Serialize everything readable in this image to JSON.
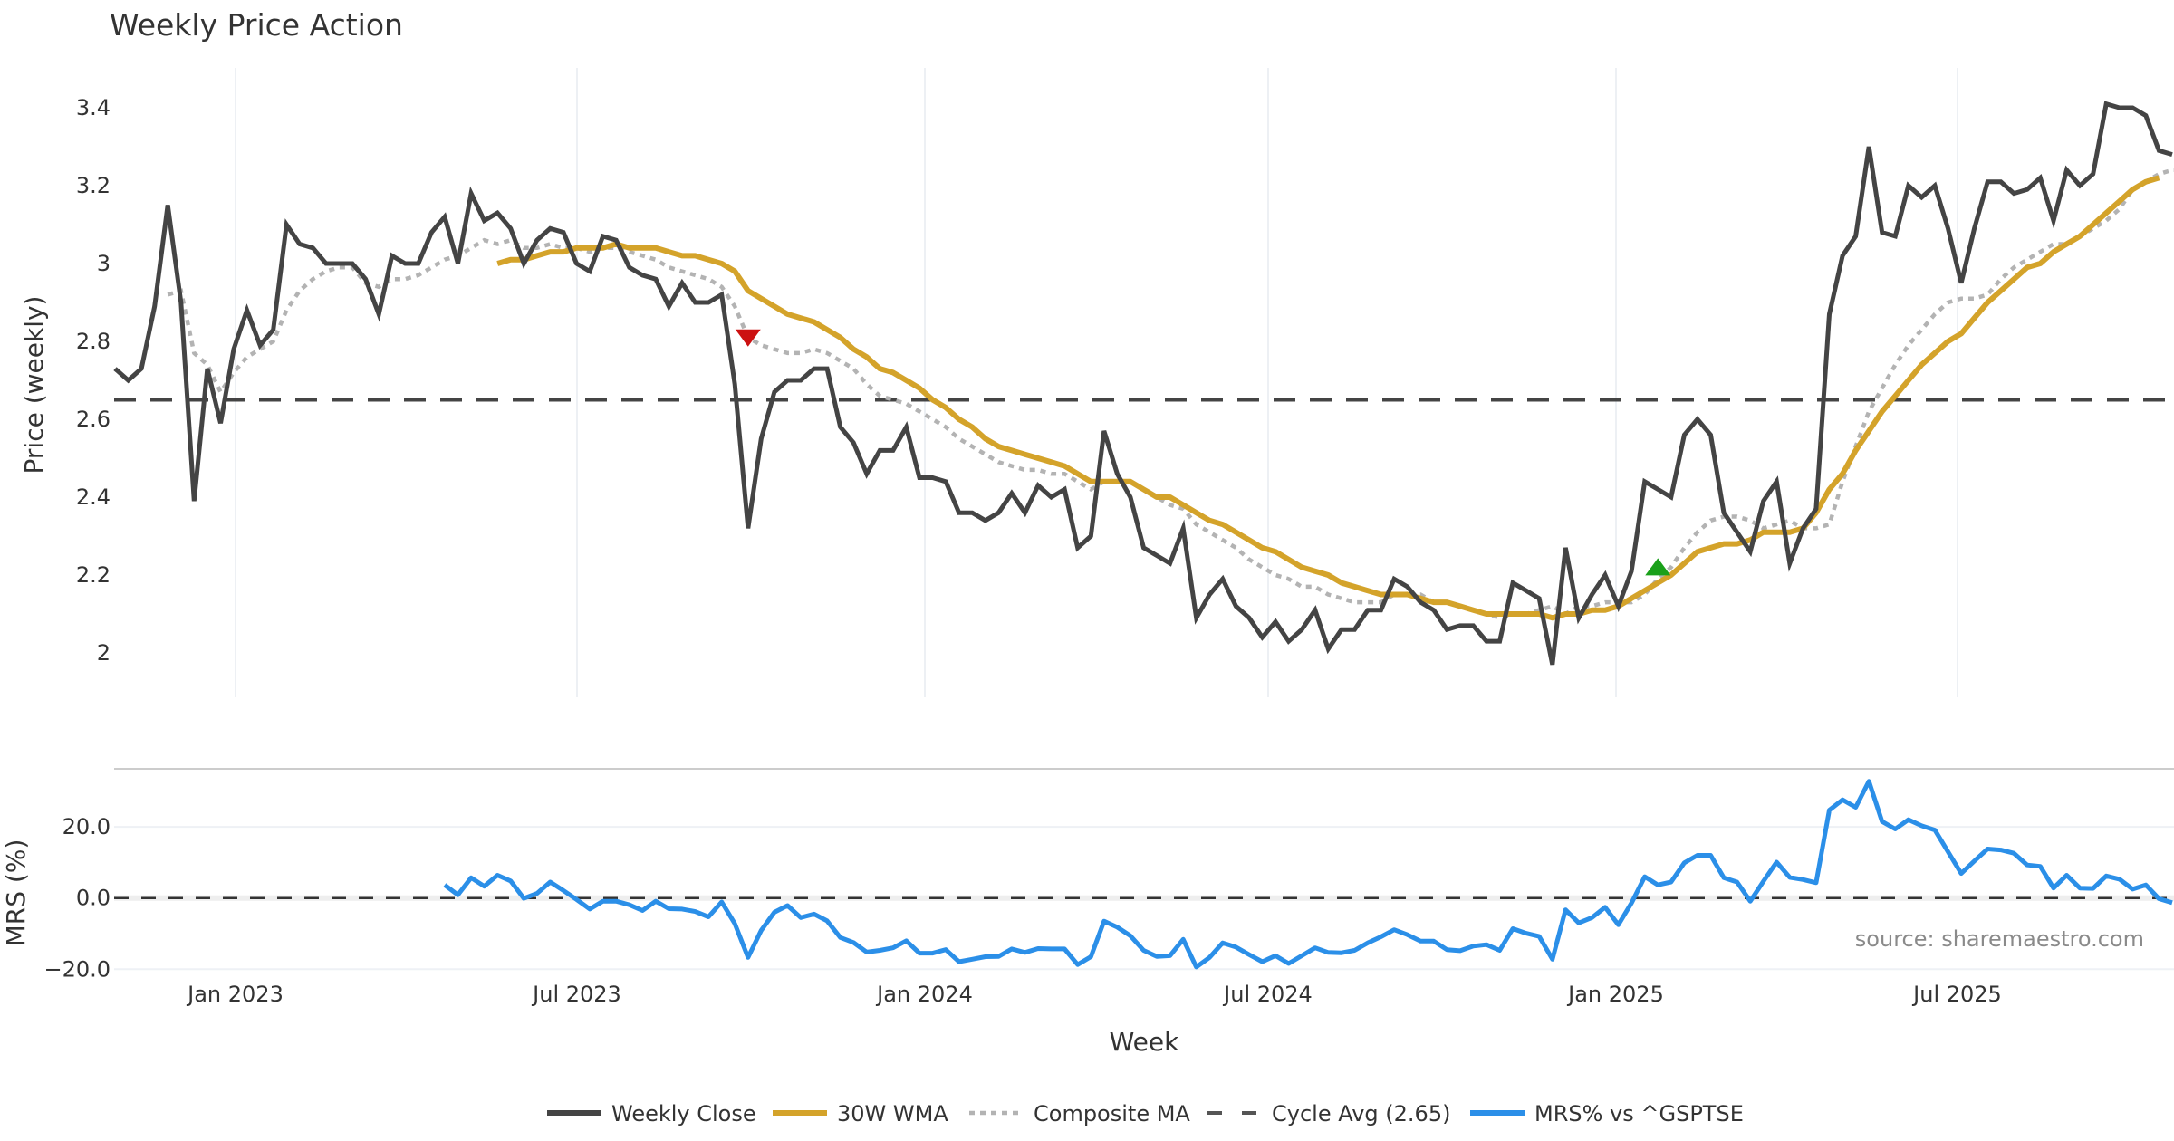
{
  "chart_data": {
    "type": "line",
    "title": "Weekly Price Action",
    "xlabel": "Week",
    "x_start": "2022-10",
    "x_ticks": [
      "Jan 2023",
      "Jul 2023",
      "Jan 2024",
      "Jul 2024",
      "Jan 2025",
      "Jul 2025"
    ],
    "top_panel": {
      "ylabel": "Price (weekly)",
      "ylim": [
        1.88,
        3.48
      ],
      "y_ticks": [
        "3.4",
        "3.2",
        "3",
        "2.8",
        "2.6",
        "2.4",
        "2.2",
        "2"
      ],
      "y_tick_values": [
        3.4,
        3.2,
        3.0,
        2.8,
        2.6,
        2.4,
        2.2,
        2.0
      ],
      "series": [
        {
          "name": "Weekly Close",
          "color": "#444444",
          "start_index": 0,
          "values": [
            2.73,
            2.7,
            2.73,
            2.89,
            3.15,
            2.9,
            2.39,
            2.73,
            2.59,
            2.78,
            2.88,
            2.79,
            2.83,
            3.1,
            3.05,
            3.04,
            3.0,
            3.0,
            3.0,
            2.96,
            2.87,
            3.02,
            3.0,
            3.0,
            3.08,
            3.12,
            3.0,
            3.18,
            3.11,
            3.13,
            3.09,
            3.0,
            3.06,
            3.09,
            3.08,
            3.0,
            2.98,
            3.07,
            3.06,
            2.99,
            2.97,
            2.96,
            2.89,
            2.95,
            2.9,
            2.9,
            2.92,
            2.69,
            2.32,
            2.55,
            2.67,
            2.7,
            2.7,
            2.73,
            2.73,
            2.58,
            2.54,
            2.46,
            2.52,
            2.52,
            2.58,
            2.45,
            2.45,
            2.44,
            2.36,
            2.36,
            2.34,
            2.36,
            2.41,
            2.36,
            2.43,
            2.4,
            2.42,
            2.27,
            2.3,
            2.57,
            2.46,
            2.4,
            2.27,
            2.25,
            2.23,
            2.32,
            2.09,
            2.15,
            2.19,
            2.12,
            2.09,
            2.04,
            2.08,
            2.03,
            2.06,
            2.11,
            2.01,
            2.06,
            2.06,
            2.11,
            2.11,
            2.19,
            2.17,
            2.13,
            2.11,
            2.06,
            2.07,
            2.07,
            2.03,
            2.03,
            2.18,
            2.16,
            2.14,
            1.97,
            2.27,
            2.09,
            2.15,
            2.2,
            2.12,
            2.21,
            2.44,
            2.42,
            2.4,
            2.56,
            2.6,
            2.56,
            2.36,
            2.31,
            2.26,
            2.39,
            2.44,
            2.23,
            2.32,
            2.37,
            2.87,
            3.02,
            3.07,
            3.3,
            3.08,
            3.07,
            3.2,
            3.17,
            3.2,
            3.09,
            2.95,
            3.09,
            3.21,
            3.21,
            3.18,
            3.19,
            3.22,
            3.11,
            3.24,
            3.2,
            3.23,
            3.41,
            3.4,
            3.4,
            3.38,
            3.29,
            3.28
          ]
        },
        {
          "name": "30W WMA",
          "color": "#D4A32A",
          "start_index": 29,
          "values": [
            3.0,
            3.01,
            3.01,
            3.02,
            3.03,
            3.03,
            3.04,
            3.04,
            3.04,
            3.05,
            3.04,
            3.04,
            3.04,
            3.03,
            3.02,
            3.02,
            3.01,
            3.0,
            2.98,
            2.93,
            2.91,
            2.89,
            2.87,
            2.86,
            2.85,
            2.83,
            2.81,
            2.78,
            2.76,
            2.73,
            2.72,
            2.7,
            2.68,
            2.65,
            2.63,
            2.6,
            2.58,
            2.55,
            2.53,
            2.52,
            2.51,
            2.5,
            2.49,
            2.48,
            2.46,
            2.44,
            2.44,
            2.44,
            2.44,
            2.42,
            2.4,
            2.4,
            2.38,
            2.36,
            2.34,
            2.33,
            2.31,
            2.29,
            2.27,
            2.26,
            2.24,
            2.22,
            2.21,
            2.2,
            2.18,
            2.17,
            2.16,
            2.15,
            2.15,
            2.15,
            2.14,
            2.13,
            2.13,
            2.12,
            2.11,
            2.1,
            2.1,
            2.1,
            2.1,
            2.1,
            2.09,
            2.1,
            2.1,
            2.11,
            2.11,
            2.12,
            2.14,
            2.16,
            2.18,
            2.2,
            2.23,
            2.26,
            2.27,
            2.28,
            2.28,
            2.29,
            2.31,
            2.31,
            2.31,
            2.32,
            2.36,
            2.42,
            2.46,
            2.52,
            2.57,
            2.62,
            2.66,
            2.7,
            2.74,
            2.77,
            2.8,
            2.82,
            2.86,
            2.9,
            2.93,
            2.96,
            2.99,
            3.0,
            3.03,
            3.05,
            3.07,
            3.1,
            3.13,
            3.16,
            3.19,
            3.21,
            3.22
          ]
        },
        {
          "name": "Composite MA",
          "color": "#B3B3B3",
          "start_index": 4,
          "values": [
            2.92,
            2.93,
            2.77,
            2.74,
            2.67,
            2.72,
            2.76,
            2.78,
            2.8,
            2.88,
            2.93,
            2.96,
            2.98,
            2.99,
            2.99,
            2.95,
            2.94,
            2.96,
            2.96,
            2.97,
            2.99,
            3.01,
            3.02,
            3.04,
            3.06,
            3.05,
            3.06,
            3.04,
            3.04,
            3.05,
            3.04,
            3.04,
            3.03,
            3.04,
            3.04,
            3.03,
            3.02,
            3.01,
            2.99,
            2.98,
            2.97,
            2.96,
            2.94,
            2.89,
            2.81,
            2.79,
            2.78,
            2.77,
            2.77,
            2.78,
            2.77,
            2.75,
            2.73,
            2.69,
            2.66,
            2.65,
            2.64,
            2.62,
            2.6,
            2.58,
            2.55,
            2.53,
            2.51,
            2.49,
            2.48,
            2.47,
            2.47,
            2.46,
            2.46,
            2.44,
            2.42,
            2.44,
            2.44,
            2.44,
            2.42,
            2.4,
            2.38,
            2.37,
            2.33,
            2.31,
            2.29,
            2.27,
            2.24,
            2.22,
            2.2,
            2.19,
            2.17,
            2.17,
            2.15,
            2.14,
            2.13,
            2.13,
            2.13,
            2.15,
            2.15,
            2.15,
            2.13,
            2.13,
            2.12,
            2.11,
            2.1,
            2.09,
            2.1,
            2.1,
            2.11,
            2.12,
            2.1,
            2.12,
            2.12,
            2.13,
            2.13,
            2.13,
            2.15,
            2.19,
            2.22,
            2.27,
            2.31,
            2.34,
            2.35,
            2.35,
            2.34,
            2.32,
            2.33,
            2.34,
            2.32,
            2.32,
            2.33,
            2.44,
            2.53,
            2.62,
            2.68,
            2.74,
            2.79,
            2.83,
            2.87,
            2.9,
            2.91,
            2.91,
            2.92,
            2.96,
            2.99,
            3.01,
            3.03,
            3.05,
            3.05,
            3.07,
            3.09,
            3.11,
            3.14,
            3.19,
            3.21,
            3.23,
            3.24,
            3.24
          ]
        },
        {
          "name": "Cycle Avg (2.65)",
          "color": "#444444",
          "value": 2.65
        }
      ],
      "markers": [
        {
          "type": "sell",
          "shape": "triangle-down",
          "color": "#CC1111",
          "index": 48,
          "value": 2.81
        },
        {
          "type": "buy",
          "shape": "triangle-up",
          "color": "#1AA01A",
          "index": 117,
          "value": 2.22
        }
      ]
    },
    "bottom_panel": {
      "ylabel": "MRS (%)",
      "ylim": [
        -22,
        36
      ],
      "y_ticks": [
        "20.0",
        "0.0",
        "−20.0"
      ],
      "y_tick_values": [
        20,
        0,
        -20
      ],
      "zero_line": 0,
      "series": [
        {
          "name": "MRS% vs ^GSPTSE",
          "color": "#2B8FE8",
          "start_index": 25,
          "values": [
            3.7,
            0.9,
            5.7,
            3.3,
            6.4,
            4.8,
            -0.1,
            1.3,
            4.5,
            2.1,
            -0.4,
            -3.1,
            -0.9,
            -0.9,
            -1.9,
            -3.5,
            -0.9,
            -3.0,
            -3.1,
            -3.8,
            -5.3,
            -1.1,
            -7.2,
            -16.7,
            -9.1,
            -4.0,
            -2.1,
            -5.5,
            -4.5,
            -6.4,
            -11.1,
            -12.5,
            -15.2,
            -14.7,
            -14.0,
            -12.0,
            -15.5,
            -15.5,
            -14.5,
            -17.9,
            -17.2,
            -16.5,
            -16.4,
            -14.3,
            -15.3,
            -14.2,
            -14.3,
            -14.3,
            -18.7,
            -16.5,
            -6.5,
            -8.2,
            -10.6,
            -14.7,
            -16.4,
            -16.2,
            -11.6,
            -19.4,
            -16.7,
            -12.6,
            -13.8,
            -15.9,
            -17.9,
            -16.2,
            -18.4,
            -16.2,
            -14.0,
            -15.3,
            -15.4,
            -14.7,
            -12.6,
            -10.9,
            -8.9,
            -10.3,
            -12.1,
            -12.1,
            -14.5,
            -14.8,
            -13.5,
            -13.1,
            -14.7,
            -8.6,
            -9.9,
            -10.8,
            -17.2,
            -3.3,
            -7.0,
            -5.5,
            -2.6,
            -7.5,
            -1.4,
            6.0,
            3.7,
            4.5,
            9.9,
            12.0,
            12.0,
            5.7,
            4.5,
            -0.9,
            4.7,
            10.1,
            5.8,
            5.2,
            4.3,
            24.7,
            27.6,
            25.5,
            32.8,
            21.5,
            19.4,
            22.0,
            20.3,
            19.1,
            13.0,
            6.9,
            10.4,
            13.8,
            13.5,
            12.6,
            9.3,
            8.9,
            2.8,
            6.4,
            2.8,
            2.7,
            6.2,
            5.3,
            2.5,
            3.7,
            -0.2,
            -1.3
          ]
        }
      ]
    },
    "n_points": 157,
    "legend": {
      "position": "bottom-center",
      "entries": [
        {
          "label": "Weekly Close",
          "style": "solid",
          "color": "#444444"
        },
        {
          "label": "30W WMA",
          "style": "solid",
          "color": "#D4A32A"
        },
        {
          "label": "Composite MA",
          "style": "dotted",
          "color": "#B3B3B3"
        },
        {
          "label": "Cycle Avg (2.65)",
          "style": "dashed",
          "color": "#555555"
        },
        {
          "label": "MRS% vs ^GSPTSE",
          "style": "solid",
          "color": "#2B8FE8"
        }
      ]
    },
    "source": "source: sharemaestro.com",
    "grid": true
  }
}
